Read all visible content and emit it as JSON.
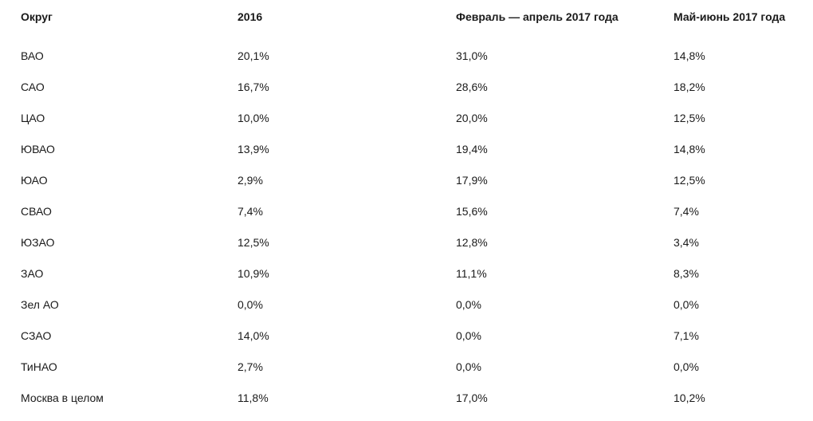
{
  "columns": [
    "Округ",
    "2016",
    "Февраль — апрель 2017 года",
    "Май-июнь 2017 года"
  ],
  "rows": [
    [
      "ВАО",
      "20,1%",
      "31,0%",
      "14,8%"
    ],
    [
      "САО",
      "16,7%",
      "28,6%",
      "18,2%"
    ],
    [
      "ЦАО",
      "10,0%",
      "20,0%",
      "12,5%"
    ],
    [
      "ЮВАО",
      "13,9%",
      "19,4%",
      "14,8%"
    ],
    [
      "ЮАО",
      "2,9%",
      "17,9%",
      "12,5%"
    ],
    [
      "СВАО",
      "7,4%",
      "15,6%",
      "7,4%"
    ],
    [
      "ЮЗАО",
      "12,5%",
      "12,8%",
      "3,4%"
    ],
    [
      "ЗАО",
      "10,9%",
      "11,1%",
      "8,3%"
    ],
    [
      "Зел АО",
      "0,0%",
      "0,0%",
      "0,0%"
    ],
    [
      "СЗАО",
      "14,0%",
      "0,0%",
      "7,1%"
    ],
    [
      "ТиНАО",
      "2,7%",
      "0,0%",
      "0,0%"
    ],
    [
      "Москва в целом",
      "11,8%",
      "17,0%",
      "10,2%"
    ]
  ]
}
